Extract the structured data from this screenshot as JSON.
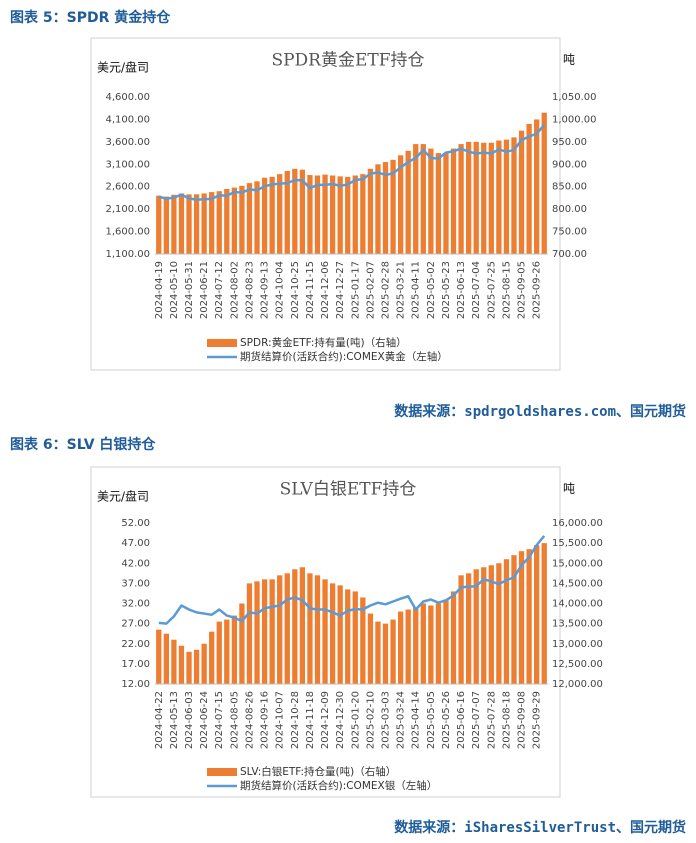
{
  "captions": [
    "图表 5：SPDR 黄金持仓",
    "图表 6：SLV 白银持仓"
  ],
  "sources": [
    "数据来源：spdrgoldshares.com、国元期货",
    "数据来源：iSharesSilverTrust、国元期货"
  ],
  "chart_data": [
    {
      "type": "combo",
      "title": "SPDR黄金ETF持仓",
      "y_label": "美元/盘司",
      "y2_label": "吨",
      "grid": false,
      "categories": [
        "2024-04-19",
        null,
        "2024-05-10",
        null,
        "2024-05-31",
        null,
        "2024-06-21",
        null,
        "2024-07-12",
        null,
        "2024-08-02",
        null,
        "2024-08-23",
        null,
        "2024-09-13",
        null,
        "2024-10-04",
        null,
        "2024-10-25",
        null,
        "2024-11-15",
        null,
        "2024-12-06",
        null,
        "2024-12-27",
        null,
        "2025-01-17",
        null,
        "2025-02-07",
        null,
        "2025-02-28",
        null,
        "2025-03-21",
        null,
        "2025-04-11",
        null,
        "2025-05-02",
        null,
        "2025-05-23",
        null,
        "2025-06-13",
        null,
        "2025-07-04",
        null,
        "2025-07-25",
        null,
        "2025-08-15",
        null,
        "2025-09-05",
        null,
        "2025-09-26",
        null
      ],
      "ylim": [
        1100,
        4600
      ],
      "yticks": [
        {
          "value": 1100,
          "label": "1,100.00"
        },
        {
          "value": 1600,
          "label": "1,600.00"
        },
        {
          "value": 2100,
          "label": "2,100.00"
        },
        {
          "value": 2600,
          "label": "2,600.00"
        },
        {
          "value": 3100,
          "label": "3,100.00"
        },
        {
          "value": 3600,
          "label": "3,600.00"
        },
        {
          "value": 4100,
          "label": "4,100.00"
        },
        {
          "value": 4600,
          "label": "4,600.00"
        }
      ],
      "y2lim": [
        700,
        1050
      ],
      "y2ticks": [
        {
          "value": 700,
          "label": "700.00"
        },
        {
          "value": 750,
          "label": "750.00"
        },
        {
          "value": 800,
          "label": "800.00"
        },
        {
          "value": 850,
          "label": "850.00"
        },
        {
          "value": 900,
          "label": "900.00"
        },
        {
          "value": 950,
          "label": "950.00"
        },
        {
          "value": 1000,
          "label": "1,000.00"
        },
        {
          "value": 1050,
          "label": "1,050.00"
        }
      ],
      "series": [
        {
          "name": "SPDR:黄金ETF:持有量(吨)（右轴）",
          "type": "bar",
          "axis": "y2",
          "color": "#ed7d31",
          "values": [
            830,
            828,
            832,
            835,
            833,
            833,
            835,
            838,
            840,
            845,
            848,
            852,
            858,
            862,
            870,
            872,
            878,
            885,
            890,
            888,
            876,
            875,
            877,
            875,
            873,
            872,
            875,
            878,
            890,
            900,
            905,
            910,
            920,
            930,
            945,
            945,
            935,
            925,
            925,
            935,
            945,
            950,
            950,
            948,
            948,
            953,
            955,
            960,
            975,
            990,
            1000,
            1015
          ]
        },
        {
          "name": "期货结算价(活跃合约):COMEX黄金（左轴）",
          "type": "line",
          "axis": "y",
          "color": "#5b9bd5",
          "values": [
            2380,
            2330,
            2360,
            2420,
            2340,
            2310,
            2320,
            2330,
            2410,
            2400,
            2480,
            2470,
            2540,
            2520,
            2610,
            2650,
            2670,
            2680,
            2750,
            2740,
            2570,
            2640,
            2640,
            2660,
            2620,
            2650,
            2750,
            2770,
            2890,
            2920,
            2860,
            2900,
            3030,
            3150,
            3240,
            3420,
            3240,
            3230,
            3360,
            3390,
            3450,
            3380,
            3340,
            3360,
            3340,
            3430,
            3380,
            3420,
            3640,
            3720,
            3780,
            3980
          ]
        }
      ]
    },
    {
      "type": "combo",
      "title": "SLV白银ETF持仓",
      "y_label": "美元/盘司",
      "y2_label": "吨",
      "grid": false,
      "categories": [
        "2024-04-22",
        null,
        "2024-05-13",
        null,
        "2024-06-03",
        null,
        "2024-06-24",
        null,
        "2024-07-15",
        null,
        "2024-08-05",
        null,
        "2024-08-26",
        null,
        "2024-09-16",
        null,
        "2024-10-07",
        null,
        "2024-10-28",
        null,
        "2024-11-18",
        null,
        "2024-12-09",
        null,
        "2024-12-30",
        null,
        "2025-01-20",
        null,
        "2025-02-10",
        null,
        "2025-03-03",
        null,
        "2025-03-24",
        null,
        "2025-04-14",
        null,
        "2025-05-05",
        null,
        "2025-05-26",
        null,
        "2025-06-16",
        null,
        "2025-07-07",
        null,
        "2025-07-28",
        null,
        "2025-08-18",
        null,
        "2025-09-08",
        null,
        "2025-09-29",
        null
      ],
      "ylim": [
        12,
        52
      ],
      "yticks": [
        {
          "value": 12,
          "label": "12.00"
        },
        {
          "value": 17,
          "label": "17.00"
        },
        {
          "value": 22,
          "label": "22.00"
        },
        {
          "value": 27,
          "label": "27.00"
        },
        {
          "value": 32,
          "label": "32.00"
        },
        {
          "value": 37,
          "label": "37.00"
        },
        {
          "value": 42,
          "label": "42.00"
        },
        {
          "value": 47,
          "label": "47.00"
        },
        {
          "value": 52,
          "label": "52.00"
        }
      ],
      "y2lim": [
        12000,
        16000
      ],
      "y2ticks": [
        {
          "value": 12000,
          "label": "12,000.00"
        },
        {
          "value": 12500,
          "label": "12,500.00"
        },
        {
          "value": 13000,
          "label": "13,000.00"
        },
        {
          "value": 13500,
          "label": "13,500.00"
        },
        {
          "value": 14000,
          "label": "14,000.00"
        },
        {
          "value": 14500,
          "label": "14,500.00"
        },
        {
          "value": 15000,
          "label": "15,000.00"
        },
        {
          "value": 15500,
          "label": "15,500.00"
        },
        {
          "value": 16000,
          "label": "16,000.00"
        }
      ],
      "series": [
        {
          "name": "SLV:白银ETF:持仓量(吨)（右轴）",
          "type": "bar",
          "axis": "y2",
          "color": "#ed7d31",
          "values": [
            13350,
            13250,
            13100,
            12950,
            12800,
            12850,
            13000,
            13300,
            13550,
            13600,
            13700,
            14000,
            14500,
            14550,
            14600,
            14600,
            14700,
            14750,
            14850,
            14900,
            14750,
            14700,
            14600,
            14500,
            14450,
            14350,
            14300,
            14150,
            13750,
            13550,
            13500,
            13600,
            13800,
            13850,
            13900,
            14000,
            13950,
            14000,
            14100,
            14300,
            14700,
            14750,
            14850,
            14900,
            14950,
            15000,
            15100,
            15200,
            15300,
            15350,
            15450,
            15500
          ]
        },
        {
          "name": "期货结算价(活跃合约):COMEX银（左轴）",
          "type": "line",
          "axis": "y",
          "color": "#5b9bd5",
          "values": [
            27.2,
            27.0,
            28.8,
            31.5,
            30.5,
            29.8,
            29.5,
            29.2,
            30.5,
            29.0,
            28.5,
            27.6,
            29.8,
            29.5,
            30.8,
            31.2,
            31.5,
            33.0,
            33.5,
            32.8,
            30.8,
            30.5,
            30.5,
            29.8,
            29.0,
            30.2,
            30.6,
            30.5,
            31.5,
            32.2,
            31.8,
            32.5,
            33.2,
            33.8,
            30.5,
            32.5,
            33.0,
            32.2,
            32.8,
            34.0,
            36.0,
            36.2,
            36.3,
            38.0,
            37.5,
            36.8,
            37.8,
            38.5,
            41.5,
            43.5,
            46.5,
            48.8
          ]
        }
      ]
    }
  ]
}
